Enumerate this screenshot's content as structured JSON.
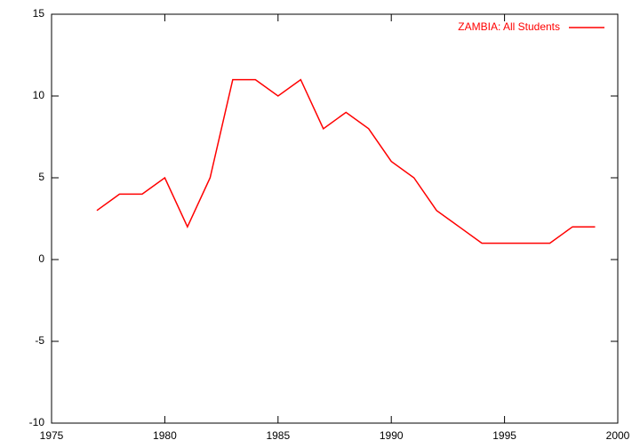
{
  "chart_data": {
    "type": "line",
    "x": [
      1977,
      1978,
      1979,
      1980,
      1981,
      1982,
      1983,
      1984,
      1985,
      1986,
      1987,
      1988,
      1989,
      1990,
      1991,
      1992,
      1993,
      1994,
      1995,
      1996,
      1997,
      1998,
      1999
    ],
    "series": [
      {
        "name": "ZAMBIA: All Students",
        "color": "#ff0000",
        "values": [
          3,
          4,
          4,
          5,
          2,
          5,
          11,
          11,
          10,
          11,
          8,
          9,
          8,
          6,
          5,
          3,
          2,
          1,
          1,
          1,
          1,
          2,
          2
        ]
      }
    ],
    "xlim": [
      1975,
      2000
    ],
    "xticks": [
      1975,
      1980,
      1985,
      1990,
      1995,
      2000
    ],
    "ylim": [
      -10,
      15
    ],
    "yticks": [
      -10,
      -5,
      0,
      5,
      10,
      15
    ],
    "grid": false,
    "legend": "top-right"
  }
}
